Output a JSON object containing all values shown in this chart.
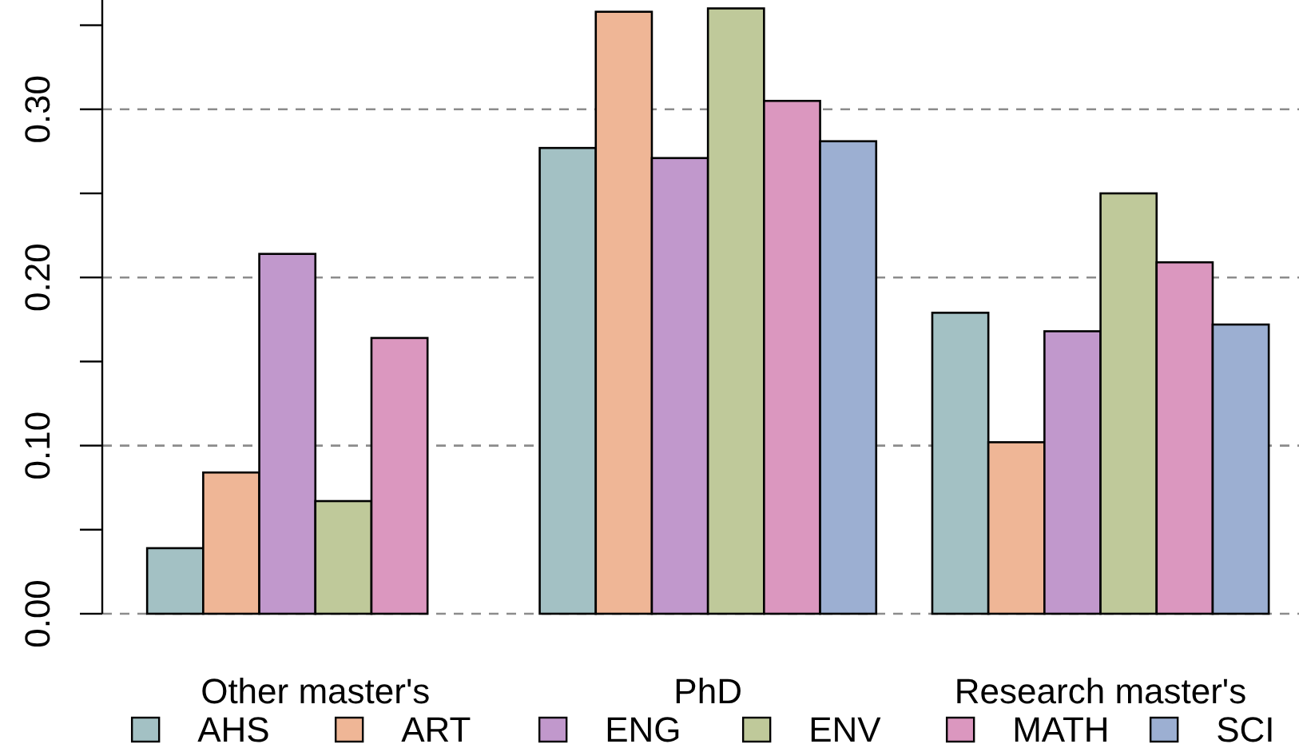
{
  "chart_data": {
    "type": "bar",
    "categories": [
      "Other master's",
      "PhD",
      "Research master's"
    ],
    "series": [
      {
        "name": "AHS",
        "color": "#a3c1c4",
        "values": [
          0.039,
          0.277,
          0.179
        ]
      },
      {
        "name": "ART",
        "color": "#efb696",
        "values": [
          0.084,
          0.358,
          0.102
        ]
      },
      {
        "name": "ENG",
        "color": "#c198cc",
        "values": [
          0.214,
          0.271,
          0.168
        ]
      },
      {
        "name": "ENV",
        "color": "#bfc99a",
        "values": [
          0.067,
          0.36,
          0.25
        ]
      },
      {
        "name": "MATH",
        "color": "#db97bf",
        "values": [
          0.164,
          0.305,
          0.209
        ]
      },
      {
        "name": "SCI",
        "color": "#9cafd2",
        "values": [
          0,
          0.281,
          0.172
        ]
      }
    ],
    "ylim": [
      0,
      0.365
    ],
    "yticks": [
      {
        "value": 0,
        "label": "0.00"
      },
      {
        "value": 0.05,
        "label": null
      },
      {
        "value": 0.1,
        "label": "0.10"
      },
      {
        "value": 0.15,
        "label": null
      },
      {
        "value": 0.2,
        "label": "0.20"
      },
      {
        "value": 0.25,
        "label": null
      },
      {
        "value": 0.3,
        "label": "0.30"
      },
      {
        "value": 0.35,
        "label": null
      }
    ],
    "grid": "y",
    "legend": "bottom"
  }
}
